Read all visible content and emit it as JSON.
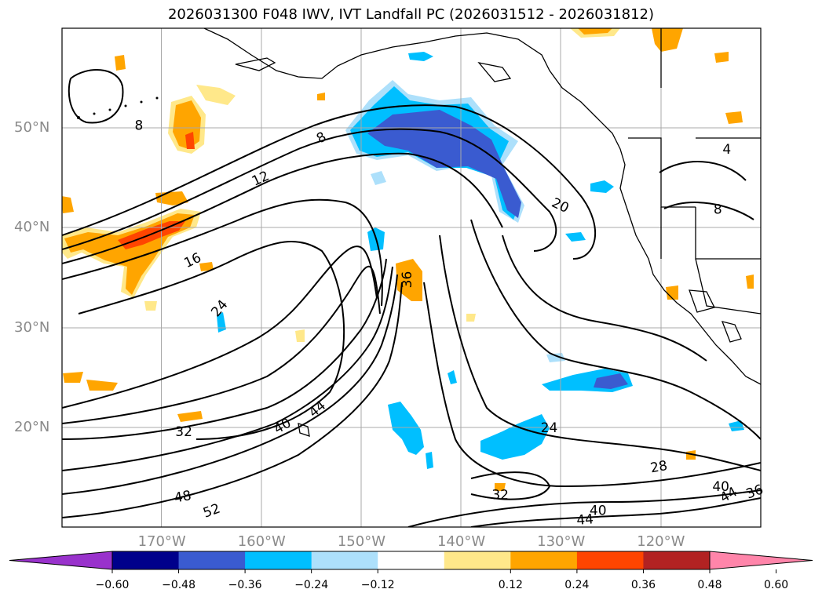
{
  "title": "2026031300 F048 IWV, IVT Landfall PC (2026031512 - 2026031812)",
  "map": {
    "lat_labels": [
      {
        "text": "50°N",
        "value": 50
      },
      {
        "text": "40°N",
        "value": 40
      },
      {
        "text": "30°N",
        "value": 30
      },
      {
        "text": "20°N",
        "value": 20
      }
    ],
    "lon_labels": [
      {
        "text": "170°W",
        "value": -170
      },
      {
        "text": "160°W",
        "value": -160
      },
      {
        "text": "150°W",
        "value": -150
      },
      {
        "text": "140°W",
        "value": -140
      },
      {
        "text": "130°W",
        "value": -130
      },
      {
        "text": "120°W",
        "value": -120
      }
    ],
    "contour_labels": [
      {
        "text": "8",
        "lon": -172.3,
        "lat": 50.2,
        "rot": 0
      },
      {
        "text": "8",
        "lon": -154.0,
        "lat": 49.0,
        "rot": -30
      },
      {
        "text": "12",
        "lon": -160.1,
        "lat": 44.9,
        "rot": -25
      },
      {
        "text": "16",
        "lon": -166.9,
        "lat": 36.7,
        "rot": -25
      },
      {
        "text": "24",
        "lon": -164.2,
        "lat": 31.9,
        "rot": -50
      },
      {
        "text": "20",
        "lon": -130.1,
        "lat": 42.2,
        "rot": 25
      },
      {
        "text": "36",
        "lon": -145.4,
        "lat": 34.8,
        "rot": -90
      },
      {
        "text": "32",
        "lon": -167.8,
        "lat": 19.5,
        "rot": 0
      },
      {
        "text": "40",
        "lon": -157.9,
        "lat": 20.1,
        "rot": -30
      },
      {
        "text": "44",
        "lon": -154.4,
        "lat": 21.8,
        "rot": -40
      },
      {
        "text": "24",
        "lon": -131.2,
        "lat": 19.9,
        "rot": 0
      },
      {
        "text": "28",
        "lon": -120.2,
        "lat": 16.0,
        "rot": -10
      },
      {
        "text": "32",
        "lon": -136.1,
        "lat": 13.2,
        "rot": 0
      },
      {
        "text": "40",
        "lon": -126.3,
        "lat": 11.6,
        "rot": 0
      },
      {
        "text": "44",
        "lon": -127.6,
        "lat": 10.7,
        "rot": -5
      },
      {
        "text": "48",
        "lon": -167.9,
        "lat": 13.0,
        "rot": -10
      },
      {
        "text": "52",
        "lon": -165.0,
        "lat": 11.6,
        "rot": -20
      },
      {
        "text": "40",
        "lon": -114.0,
        "lat": 14.0,
        "rot": 0
      },
      {
        "text": "44",
        "lon": -113.2,
        "lat": 13.2,
        "rot": -30
      },
      {
        "text": "36",
        "lon": -110.6,
        "lat": 13.5,
        "rot": -20
      },
      {
        "text": "4",
        "lon": -113.4,
        "lat": 47.8,
        "rot": 0
      },
      {
        "text": "8",
        "lon": -114.3,
        "lat": 41.8,
        "rot": 0
      }
    ]
  },
  "colorbar": {
    "labels": [
      "−0.60",
      "−0.48",
      "−0.36",
      "−0.24",
      "−0.12",
      "0.12",
      "0.24",
      "0.36",
      "0.48",
      "0.60"
    ],
    "colors": [
      "#9932cc",
      "#00008b",
      "#3a5bd0",
      "#00bfff",
      "#ade0fb",
      "#ffffff",
      "#ffe88a",
      "#ffa500",
      "#ff4500",
      "#b22222",
      "#ff85aa"
    ]
  }
}
